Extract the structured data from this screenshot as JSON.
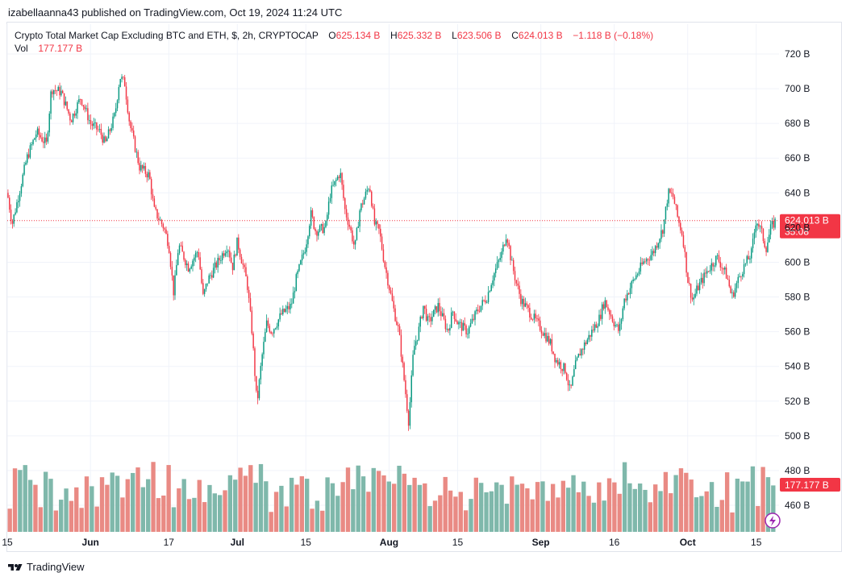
{
  "publisher": "izabellaanna43 published on TradingView.com, Oct 19, 2024 11:24 UTC",
  "legend": {
    "symbol": "Crypto Total Market Cap Excluding BTC and ETH, $, 2h, CRYPTOCAP",
    "o_label": "O",
    "o_value": "625.134 B",
    "h_label": "H",
    "h_value": "625.332 B",
    "l_label": "L",
    "l_value": "623.506 B",
    "c_label": "C",
    "c_value": "624.013 B",
    "change": "−1.118 B (−0.18%)",
    "vol_label": "Vol",
    "vol_value": "177.177 B"
  },
  "brand": "TradingView",
  "colors": {
    "up": "#089981",
    "down": "#f23645",
    "vol_up": "#7fb8ab",
    "vol_down": "#e98a84",
    "grid": "#f0f3fa",
    "text": "#131722"
  },
  "chart_data": {
    "type": "candlestick",
    "title": "Crypto Total Market Cap Excluding BTC and ETH, $, 2h, CRYPTOCAP",
    "y_unit": "B",
    "ylim": [
      440,
      730
    ],
    "y_ticks": [
      "720 B",
      "700 B",
      "680 B",
      "660 B",
      "640 B",
      "620 B",
      "600 B",
      "580 B",
      "560 B",
      "540 B",
      "520 B",
      "500 B",
      "480 B",
      "460 B"
    ],
    "y_tick_values": [
      720,
      700,
      680,
      660,
      640,
      620,
      600,
      580,
      560,
      540,
      520,
      500,
      480,
      460
    ],
    "x_ticks": [
      "15",
      "Jun",
      "17",
      "Jul",
      "15",
      "Aug",
      "15",
      "Sep",
      "16",
      "Oct",
      "15"
    ],
    "x_range": [
      "May 15",
      "Oct 19"
    ],
    "x_tick_dates": [
      "May 15",
      "Jun 1",
      "Jun 17",
      "Jul 1",
      "Jul 15",
      "Aug 1",
      "Aug 15",
      "Sep 1",
      "Sep 16",
      "Oct 1",
      "Oct 15"
    ],
    "last_price": "624.013 B",
    "last_price_value": 624.013,
    "countdown": "35:08",
    "last_volume": "177.177 B",
    "last_volume_value": 177.177,
    "price_path": [
      [
        "May 15",
        640
      ],
      [
        "May 16",
        622
      ],
      [
        "May 19",
        660
      ],
      [
        "May 21",
        675
      ],
      [
        "May 23",
        668
      ],
      [
        "May 24",
        700
      ],
      [
        "May 26",
        698
      ],
      [
        "May 28",
        682
      ],
      [
        "May 30",
        695
      ],
      [
        "Jun 1",
        680
      ],
      [
        "Jun 3",
        675
      ],
      [
        "Jun 4",
        668
      ],
      [
        "Jun 6",
        685
      ],
      [
        "Jun 7",
        707
      ],
      [
        "Jun 8",
        703
      ],
      [
        "Jun 9",
        680
      ],
      [
        "Jun 11",
        655
      ],
      [
        "Jun 13",
        650
      ],
      [
        "Jun 14",
        630
      ],
      [
        "Jun 16",
        620
      ],
      [
        "Jun 17",
        610
      ],
      [
        "Jun 18",
        582
      ],
      [
        "Jun 19",
        610
      ],
      [
        "Jun 21",
        597
      ],
      [
        "Jun 23",
        607
      ],
      [
        "Jun 24",
        580
      ],
      [
        "Jun 25",
        590
      ],
      [
        "Jun 27",
        600
      ],
      [
        "Jun 29",
        610
      ],
      [
        "Jun 30",
        597
      ],
      [
        "Jul 1",
        612
      ],
      [
        "Jul 3",
        588
      ],
      [
        "Jul 4",
        560
      ],
      [
        "Jul 5",
        518
      ],
      [
        "Jul 6",
        545
      ],
      [
        "Jul 7",
        565
      ],
      [
        "Jul 8",
        560
      ],
      [
        "Jul 10",
        570
      ],
      [
        "Jul 12",
        575
      ],
      [
        "Jul 13",
        590
      ],
      [
        "Jul 15",
        610
      ],
      [
        "Jul 16",
        628
      ],
      [
        "Jul 17",
        618
      ],
      [
        "Jul 19",
        620
      ],
      [
        "Jul 20",
        640
      ],
      [
        "Jul 22",
        652
      ],
      [
        "Jul 23",
        630
      ],
      [
        "Jul 24",
        620
      ],
      [
        "Jul 25",
        608
      ],
      [
        "Jul 26",
        630
      ],
      [
        "Jul 28",
        645
      ],
      [
        "Jul 29",
        622
      ],
      [
        "Jul 30",
        618
      ],
      [
        "Jul 31",
        600
      ],
      [
        "Aug 2",
        572
      ],
      [
        "Aug 3",
        560
      ],
      [
        "Aug 5",
        508
      ],
      [
        "Aug 6",
        550
      ],
      [
        "Aug 7",
        560
      ],
      [
        "Aug 8",
        575
      ],
      [
        "Aug 9",
        565
      ],
      [
        "Aug 11",
        575
      ],
      [
        "Aug 13",
        560
      ],
      [
        "Aug 14",
        572
      ],
      [
        "Aug 15",
        565
      ],
      [
        "Aug 17",
        560
      ],
      [
        "Aug 19",
        572
      ],
      [
        "Aug 21",
        580
      ],
      [
        "Aug 22",
        590
      ],
      [
        "Aug 24",
        605
      ],
      [
        "Aug 25",
        617
      ],
      [
        "Aug 26",
        600
      ],
      [
        "Aug 27",
        588
      ],
      [
        "Aug 28",
        578
      ],
      [
        "Aug 30",
        570
      ],
      [
        "Sep 1",
        562
      ],
      [
        "Sep 3",
        553
      ],
      [
        "Sep 4",
        544
      ],
      [
        "Sep 6",
        538
      ],
      [
        "Sep 7",
        525
      ],
      [
        "Sep 8",
        540
      ],
      [
        "Sep 9",
        548
      ],
      [
        "Sep 11",
        558
      ],
      [
        "Sep 13",
        568
      ],
      [
        "Sep 14",
        578
      ],
      [
        "Sep 16",
        565
      ],
      [
        "Sep 17",
        560
      ],
      [
        "Sep 18",
        578
      ],
      [
        "Sep 20",
        590
      ],
      [
        "Sep 22",
        600
      ],
      [
        "Sep 24",
        606
      ],
      [
        "Sep 26",
        620
      ],
      [
        "Sep 27",
        640
      ],
      [
        "Sep 28",
        638
      ],
      [
        "Sep 29",
        625
      ],
      [
        "Sep 30",
        615
      ],
      [
        "Oct 1",
        590
      ],
      [
        "Oct 2",
        578
      ],
      [
        "Oct 3",
        585
      ],
      [
        "Oct 5",
        595
      ],
      [
        "Oct 7",
        603
      ],
      [
        "Oct 9",
        592
      ],
      [
        "Oct 10",
        580
      ],
      [
        "Oct 12",
        595
      ],
      [
        "Oct 14",
        605
      ],
      [
        "Oct 15",
        625
      ],
      [
        "Oct 16",
        618
      ],
      [
        "Oct 17",
        608
      ],
      [
        "Oct 18",
        620
      ],
      [
        "Oct 19",
        624
      ]
    ]
  }
}
